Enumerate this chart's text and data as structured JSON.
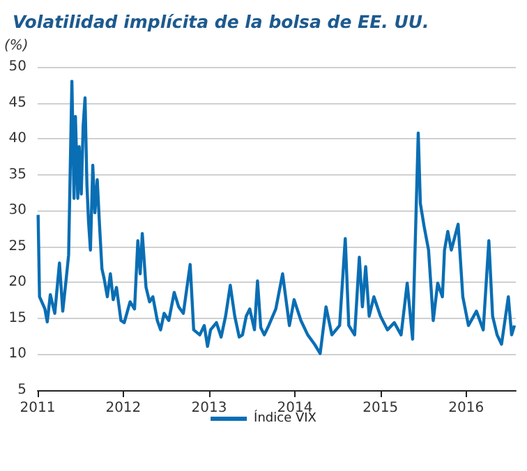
{
  "chart_data": {
    "type": "line",
    "title": "Volatilidad implícita de la bolsa de EE. UU.",
    "ylabel": "(%)",
    "x": [
      "2011-01-03",
      "2011-01-09",
      "2011-02-01",
      "2011-02-11",
      "2011-02-24",
      "2011-03-15",
      "2011-04-04",
      "2011-04-18",
      "2011-05-03",
      "2011-05-13",
      "2011-05-27",
      "2011-06-05",
      "2011-06-11",
      "2011-06-21",
      "2011-06-27",
      "2011-07-06",
      "2011-07-14",
      "2011-07-22",
      "2011-07-30",
      "2011-08-06",
      "2011-08-14",
      "2011-08-24",
      "2011-09-02",
      "2011-09-12",
      "2011-09-22",
      "2011-10-02",
      "2011-10-11",
      "2011-10-25",
      "2011-11-07",
      "2011-11-19",
      "2011-12-03",
      "2011-12-22",
      "2012-01-05",
      "2012-01-30",
      "2012-02-18",
      "2012-03-03",
      "2012-03-13",
      "2012-03-22",
      "2012-04-07",
      "2012-04-22",
      "2012-05-06",
      "2012-05-25",
      "2012-06-08",
      "2012-06-23",
      "2012-07-13",
      "2012-08-05",
      "2012-08-24",
      "2012-09-13",
      "2012-10-12",
      "2012-10-27",
      "2012-11-22",
      "2012-12-11",
      "2012-12-25",
      "2013-01-07",
      "2013-02-01",
      "2013-02-21",
      "2013-03-12",
      "2013-04-01",
      "2013-04-20",
      "2013-05-09",
      "2013-05-23",
      "2013-06-08",
      "2013-06-23",
      "2013-07-13",
      "2013-07-26",
      "2013-08-09",
      "2013-08-24",
      "2013-09-12",
      "2013-10-12",
      "2013-11-10",
      "2013-12-09",
      "2013-12-29",
      "2014-01-27",
      "2014-02-25",
      "2014-03-26",
      "2014-04-19",
      "2014-05-14",
      "2014-06-08",
      "2014-07-11",
      "2014-08-04",
      "2014-08-19",
      "2014-09-13",
      "2014-10-03",
      "2014-10-16",
      "2014-10-30",
      "2014-11-14",
      "2014-12-04",
      "2015-01-01",
      "2015-01-31",
      "2015-03-01",
      "2015-03-30",
      "2015-04-25",
      "2015-05-18",
      "2015-06-11",
      "2015-06-20",
      "2015-07-06",
      "2015-07-25",
      "2015-08-14",
      "2015-09-02",
      "2015-09-22",
      "2015-10-01",
      "2015-10-15",
      "2015-10-30",
      "2015-11-28",
      "2015-12-18",
      "2016-01-11",
      "2016-02-14",
      "2016-03-14",
      "2016-04-07",
      "2016-04-23",
      "2016-05-12",
      "2016-05-31",
      "2016-06-29",
      "2016-07-13",
      "2016-07-25"
    ],
    "series": [
      {
        "name": "Índice VIX",
        "color": "#0a6eb4",
        "values": [
          29.4,
          18.0,
          16.3,
          14.5,
          18.3,
          15.7,
          22.7,
          16.0,
          20.6,
          23.8,
          48.0,
          31.7,
          43.1,
          31.7,
          38.9,
          32.3,
          41.8,
          45.7,
          33.6,
          28.4,
          24.5,
          36.3,
          29.7,
          34.3,
          27.8,
          21.9,
          20.6,
          18.0,
          21.2,
          17.6,
          19.3,
          14.7,
          14.4,
          17.3,
          16.3,
          25.8,
          21.2,
          26.8,
          19.3,
          17.3,
          18.0,
          14.7,
          13.4,
          15.7,
          14.7,
          18.6,
          16.6,
          15.7,
          22.5,
          13.4,
          12.7,
          14.0,
          11.1,
          13.4,
          14.4,
          12.4,
          15.3,
          19.6,
          15.3,
          12.4,
          12.7,
          15.3,
          16.3,
          13.4,
          20.2,
          13.7,
          12.7,
          14.0,
          16.3,
          21.2,
          14.0,
          17.6,
          14.7,
          12.7,
          11.4,
          10.1,
          16.6,
          12.7,
          14.0,
          26.1,
          14.0,
          12.7,
          23.5,
          16.6,
          22.2,
          15.3,
          18.0,
          15.3,
          13.4,
          14.4,
          12.7,
          19.9,
          12.1,
          40.8,
          31.0,
          27.8,
          24.5,
          14.7,
          19.9,
          18.0,
          24.5,
          27.1,
          24.5,
          28.1,
          18.0,
          14.0,
          16.0,
          13.4,
          25.8,
          15.3,
          12.7,
          11.4,
          18.0,
          12.7,
          14.0
        ]
      }
    ],
    "xlim": [
      "2011-01-01",
      "2016-07-31"
    ],
    "xticks": [
      "2011",
      "2012",
      "2013",
      "2014",
      "2015",
      "2016"
    ],
    "ylim": [
      5,
      50
    ],
    "yticks": [
      5,
      10,
      15,
      20,
      25,
      30,
      35,
      40,
      45,
      50
    ],
    "grid": "y",
    "legend": "bottom",
    "marker": "none",
    "line_style": "solid"
  }
}
